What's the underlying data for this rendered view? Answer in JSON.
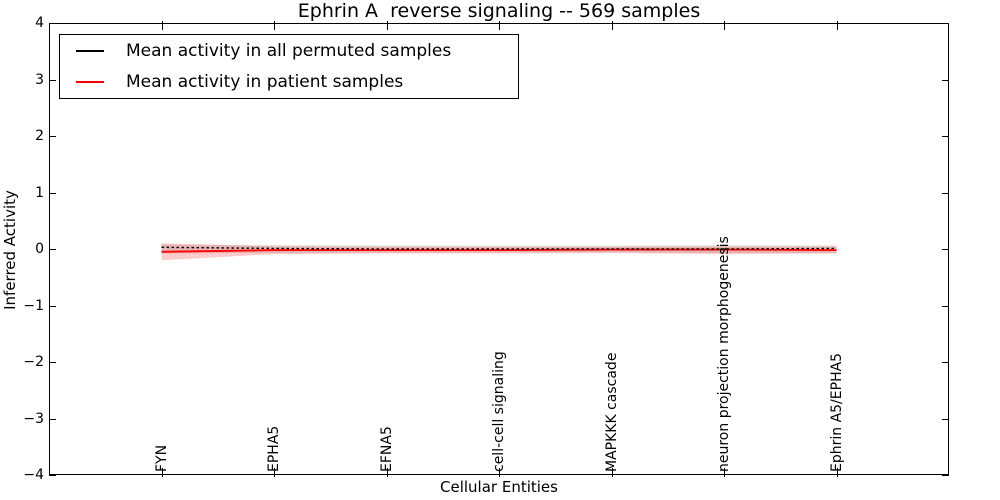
{
  "title": "Ephrin A  reverse signaling -- 569 samples",
  "axes": {
    "xlabel": "Cellular Entities",
    "ylabel": "Inferred Activity"
  },
  "legend": {
    "position": "upper left",
    "items": [
      {
        "label": "Mean activity in all permuted samples",
        "color": "#000000"
      },
      {
        "label": "Mean activity in patient samples",
        "color": "#ff0000"
      }
    ]
  },
  "colors": {
    "background": "#ffffff",
    "axis": "#000000",
    "permuted_line": "#000000",
    "patient_line": "#ff0000",
    "permuted_band": "rgba(0,0,0,0.12)",
    "patient_band": "rgba(255,0,0,0.20)"
  },
  "chart_data": {
    "type": "line",
    "title": "Ephrin A  reverse signaling -- 569 samples",
    "xlabel": "Cellular Entities",
    "ylabel": "Inferred Activity",
    "ylim": [
      -4,
      4
    ],
    "yticks": [
      -4,
      -3,
      -2,
      -1,
      0,
      1,
      2,
      3,
      4
    ],
    "xlim": [
      0,
      8
    ],
    "x": [
      1,
      2,
      3,
      4,
      5,
      6,
      7
    ],
    "categories": [
      "FYN",
      "EPHA5",
      "EFNA5",
      "cell-cell signaling",
      "MAPKKK cascade",
      "neuron projection morphogenesis",
      "Ephrin A5/EPHA5"
    ],
    "grid": false,
    "tick_direction": "in",
    "legend_position": "upper left",
    "series": [
      {
        "name": "Mean activity in all permuted samples",
        "color": "#000000",
        "line_style": "dashed-overlay",
        "values": [
          0.03,
          0.01,
          0.0,
          0.0,
          0.0,
          0.0,
          0.01
        ],
        "band_upper": [
          0.08,
          0.07,
          0.065,
          0.06,
          0.06,
          0.065,
          0.065
        ],
        "band_lower": [
          -0.08,
          -0.07,
          -0.065,
          -0.06,
          -0.06,
          -0.07,
          -0.07
        ],
        "band_color": "rgba(0,0,0,0.12)"
      },
      {
        "name": "Mean activity in patient samples",
        "color": "#ff0000",
        "line_style": "solid",
        "values": [
          -0.05,
          -0.02,
          -0.02,
          -0.02,
          -0.01,
          -0.01,
          -0.02
        ],
        "band_upper": [
          0.1,
          0.045,
          0.04,
          0.04,
          0.04,
          0.045,
          0.04
        ],
        "band_lower": [
          -0.2,
          -0.09,
          -0.08,
          -0.08,
          -0.07,
          -0.09,
          -0.08
        ],
        "band_color": "rgba(255,0,0,0.20)"
      }
    ]
  }
}
